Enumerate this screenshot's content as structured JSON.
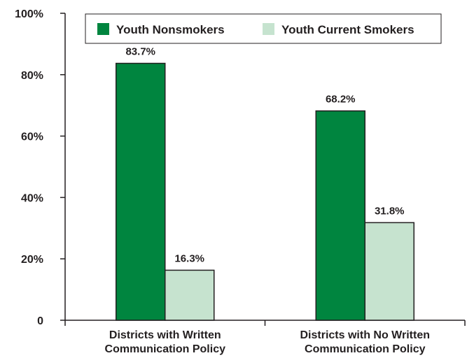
{
  "chart_data": {
    "type": "bar",
    "categories": [
      [
        "Districts with Written",
        "Communication Policy"
      ],
      [
        "Districts with No Written",
        "Communication Policy"
      ]
    ],
    "series": [
      {
        "name": "Youth Nonsmokers",
        "values": [
          83.7,
          68.2
        ],
        "labels": [
          "83.7%",
          "68.2%"
        ],
        "color": "#00853f"
      },
      {
        "name": "Youth Current Smokers",
        "values": [
          16.3,
          31.8
        ],
        "labels": [
          "16.3%",
          "31.8%"
        ],
        "color": "#c6e3cf"
      }
    ],
    "ylim": [
      0,
      100
    ],
    "yticks": [
      0,
      20,
      40,
      60,
      80,
      100
    ],
    "ytick_labels": [
      "0",
      "20%",
      "40%",
      "60%",
      "80%",
      "100%"
    ],
    "legend_position": "top",
    "grid": false
  }
}
